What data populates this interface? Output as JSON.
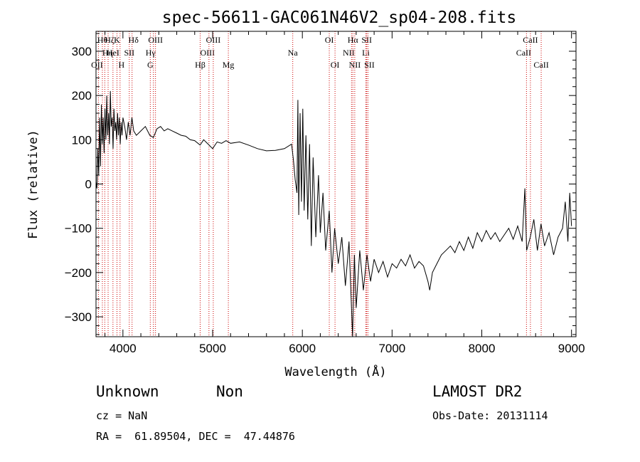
{
  "chart_data": {
    "type": "line",
    "title": "spec-56611-GAC061N46V2_sp04-208.fits",
    "xlabel": "Wavelength (Å)",
    "ylabel": "Flux (relative)",
    "xlim": [
      3700,
      9050
    ],
    "ylim": [
      -345,
      345
    ],
    "xticks": [
      4000,
      5000,
      6000,
      7000,
      8000,
      9000
    ],
    "yticks": [
      -300,
      -200,
      -100,
      0,
      100,
      200,
      300
    ],
    "series": [
      {
        "points": [
          [
            3700,
            5
          ],
          [
            3710,
            -10
          ],
          [
            3720,
            80
          ],
          [
            3730,
            20
          ],
          [
            3740,
            150
          ],
          [
            3750,
            40
          ],
          [
            3760,
            180
          ],
          [
            3770,
            90
          ],
          [
            3780,
            150
          ],
          [
            3790,
            70
          ],
          [
            3800,
            170
          ],
          [
            3810,
            100
          ],
          [
            3820,
            200
          ],
          [
            3830,
            110
          ],
          [
            3840,
            160
          ],
          [
            3850,
            90
          ],
          [
            3860,
            210
          ],
          [
            3870,
            130
          ],
          [
            3880,
            150
          ],
          [
            3890,
            80
          ],
          [
            3900,
            170
          ],
          [
            3910,
            120
          ],
          [
            3920,
            140
          ],
          [
            3930,
            100
          ],
          [
            3940,
            160
          ],
          [
            3950,
            110
          ],
          [
            3960,
            150
          ],
          [
            3970,
            90
          ],
          [
            3980,
            140
          ],
          [
            3990,
            110
          ],
          [
            4000,
            150
          ],
          [
            4020,
            130
          ],
          [
            4040,
            100
          ],
          [
            4060,
            140
          ],
          [
            4080,
            110
          ],
          [
            4100,
            150
          ],
          [
            4120,
            120
          ],
          [
            4150,
            110
          ],
          [
            4200,
            120
          ],
          [
            4250,
            130
          ],
          [
            4300,
            110
          ],
          [
            4340,
            105
          ],
          [
            4380,
            125
          ],
          [
            4420,
            130
          ],
          [
            4460,
            120
          ],
          [
            4500,
            125
          ],
          [
            4550,
            120
          ],
          [
            4600,
            115
          ],
          [
            4650,
            110
          ],
          [
            4700,
            108
          ],
          [
            4750,
            100
          ],
          [
            4800,
            98
          ],
          [
            4860,
            88
          ],
          [
            4900,
            100
          ],
          [
            4950,
            90
          ],
          [
            5000,
            80
          ],
          [
            5050,
            95
          ],
          [
            5100,
            92
          ],
          [
            5150,
            98
          ],
          [
            5200,
            92
          ],
          [
            5300,
            95
          ],
          [
            5400,
            88
          ],
          [
            5500,
            80
          ],
          [
            5600,
            75
          ],
          [
            5700,
            76
          ],
          [
            5800,
            80
          ],
          [
            5880,
            90
          ],
          [
            5900,
            55
          ],
          [
            5920,
            10
          ],
          [
            5940,
            -20
          ],
          [
            5950,
            190
          ],
          [
            5960,
            -70
          ],
          [
            5975,
            160
          ],
          [
            5990,
            -40
          ],
          [
            6005,
            170
          ],
          [
            6020,
            -60
          ],
          [
            6040,
            110
          ],
          [
            6060,
            -80
          ],
          [
            6080,
            90
          ],
          [
            6100,
            -140
          ],
          [
            6120,
            60
          ],
          [
            6150,
            -120
          ],
          [
            6180,
            20
          ],
          [
            6200,
            -110
          ],
          [
            6230,
            -20
          ],
          [
            6260,
            -150
          ],
          [
            6300,
            -60
          ],
          [
            6330,
            -200
          ],
          [
            6360,
            -100
          ],
          [
            6400,
            -180
          ],
          [
            6440,
            -120
          ],
          [
            6480,
            -230
          ],
          [
            6520,
            -130
          ],
          [
            6560,
            -350
          ],
          [
            6580,
            -160
          ],
          [
            6600,
            -280
          ],
          [
            6640,
            -150
          ],
          [
            6680,
            -240
          ],
          [
            6720,
            -160
          ],
          [
            6760,
            -220
          ],
          [
            6800,
            -170
          ],
          [
            6850,
            -200
          ],
          [
            6900,
            -175
          ],
          [
            6950,
            -210
          ],
          [
            7000,
            -180
          ],
          [
            7050,
            -190
          ],
          [
            7100,
            -170
          ],
          [
            7150,
            -185
          ],
          [
            7200,
            -160
          ],
          [
            7250,
            -190
          ],
          [
            7300,
            -175
          ],
          [
            7350,
            -185
          ],
          [
            7400,
            -220
          ],
          [
            7420,
            -240
          ],
          [
            7450,
            -200
          ],
          [
            7500,
            -180
          ],
          [
            7550,
            -160
          ],
          [
            7600,
            -150
          ],
          [
            7650,
            -140
          ],
          [
            7700,
            -155
          ],
          [
            7750,
            -130
          ],
          [
            7800,
            -150
          ],
          [
            7850,
            -120
          ],
          [
            7900,
            -145
          ],
          [
            7950,
            -110
          ],
          [
            8000,
            -130
          ],
          [
            8050,
            -105
          ],
          [
            8100,
            -125
          ],
          [
            8150,
            -110
          ],
          [
            8200,
            -130
          ],
          [
            8250,
            -115
          ],
          [
            8300,
            -100
          ],
          [
            8350,
            -125
          ],
          [
            8400,
            -95
          ],
          [
            8450,
            -130
          ],
          [
            8480,
            -10
          ],
          [
            8500,
            -150
          ],
          [
            8540,
            -120
          ],
          [
            8580,
            -80
          ],
          [
            8620,
            -150
          ],
          [
            8660,
            -90
          ],
          [
            8700,
            -140
          ],
          [
            8750,
            -110
          ],
          [
            8800,
            -160
          ],
          [
            8850,
            -120
          ],
          [
            8900,
            -100
          ],
          [
            8930,
            -40
          ],
          [
            8960,
            -130
          ],
          [
            8980,
            -20
          ],
          [
            9000,
            -95
          ]
        ]
      }
    ],
    "lines": [
      {
        "wave": 3727,
        "row": 2,
        "label": "OII",
        "dx": -2
      },
      {
        "wave": 3771,
        "row": 0,
        "label": "Hθ",
        "dx": 0
      },
      {
        "wave": 3798,
        "row": 1,
        "label": "Hη",
        "dx": 4
      },
      {
        "wave": 3835,
        "row": 0,
        "label": "Hζ",
        "dx": 2
      },
      {
        "wave": 3889,
        "row": 1,
        "label": "HeI",
        "dx": 0
      },
      {
        "wave": 3934,
        "row": 0,
        "label": "K",
        "dx": 0
      },
      {
        "wave": 3968,
        "row": 2,
        "label": "H",
        "dx": 2
      },
      {
        "wave": 4071,
        "row": 1,
        "label": "SII",
        "dx": 0
      },
      {
        "wave": 4102,
        "row": 0,
        "label": "Hδ",
        "dx": 2
      },
      {
        "wave": 4305,
        "row": 2,
        "label": "G",
        "dx": 0
      },
      {
        "wave": 4340,
        "row": 1,
        "label": "Hγ",
        "dx": -4
      },
      {
        "wave": 4363,
        "row": 0,
        "label": "OIII",
        "dx": 0
      },
      {
        "wave": 4861,
        "row": 2,
        "label": "Hβ",
        "dx": 0
      },
      {
        "wave": 4959,
        "row": 1,
        "label": "OIII",
        "dx": -2
      },
      {
        "wave": 5007,
        "row": 0,
        "label": "OIII",
        "dx": 0
      },
      {
        "wave": 5175,
        "row": 2,
        "label": "Mg",
        "dx": 0
      },
      {
        "wave": 5893,
        "row": 1,
        "label": "Na",
        "dx": 0
      },
      {
        "wave": 6300,
        "row": 0,
        "label": "OI",
        "dx": 0
      },
      {
        "wave": 6364,
        "row": 2,
        "label": "OI",
        "dx": 0
      },
      {
        "wave": 6548,
        "row": 1,
        "label": "NII",
        "dx": -4
      },
      {
        "wave": 6563,
        "row": 0,
        "label": "Hα",
        "dx": 0
      },
      {
        "wave": 6584,
        "row": 2,
        "label": "NII",
        "dx": 0
      },
      {
        "wave": 6708,
        "row": 1,
        "label": "Li",
        "dx": 0
      },
      {
        "wave": 6717,
        "row": 0,
        "label": "SII",
        "dx": 0
      },
      {
        "wave": 6731,
        "row": 2,
        "label": "SII",
        "dx": 2
      },
      {
        "wave": 8498,
        "row": 1,
        "label": "CaII",
        "dx": -4
      },
      {
        "wave": 8542,
        "row": 0,
        "label": "CaII",
        "dx": 0
      },
      {
        "wave": 8662,
        "row": 2,
        "label": "CaII",
        "dx": 0
      }
    ]
  },
  "info": {
    "class_label": "Unknown",
    "subclass_label": "Non",
    "redshift_text": "cz = NaN",
    "coords_text": "RA =  61.89504, DEC =  47.44876",
    "survey_label": "LAMOST DR2",
    "obs_date_text": "Obs-Date: 20131114"
  },
  "colors": {
    "spectrum": "#000000",
    "line_markers": "#cc0000",
    "axes": "#000000",
    "background": "#ffffff"
  }
}
